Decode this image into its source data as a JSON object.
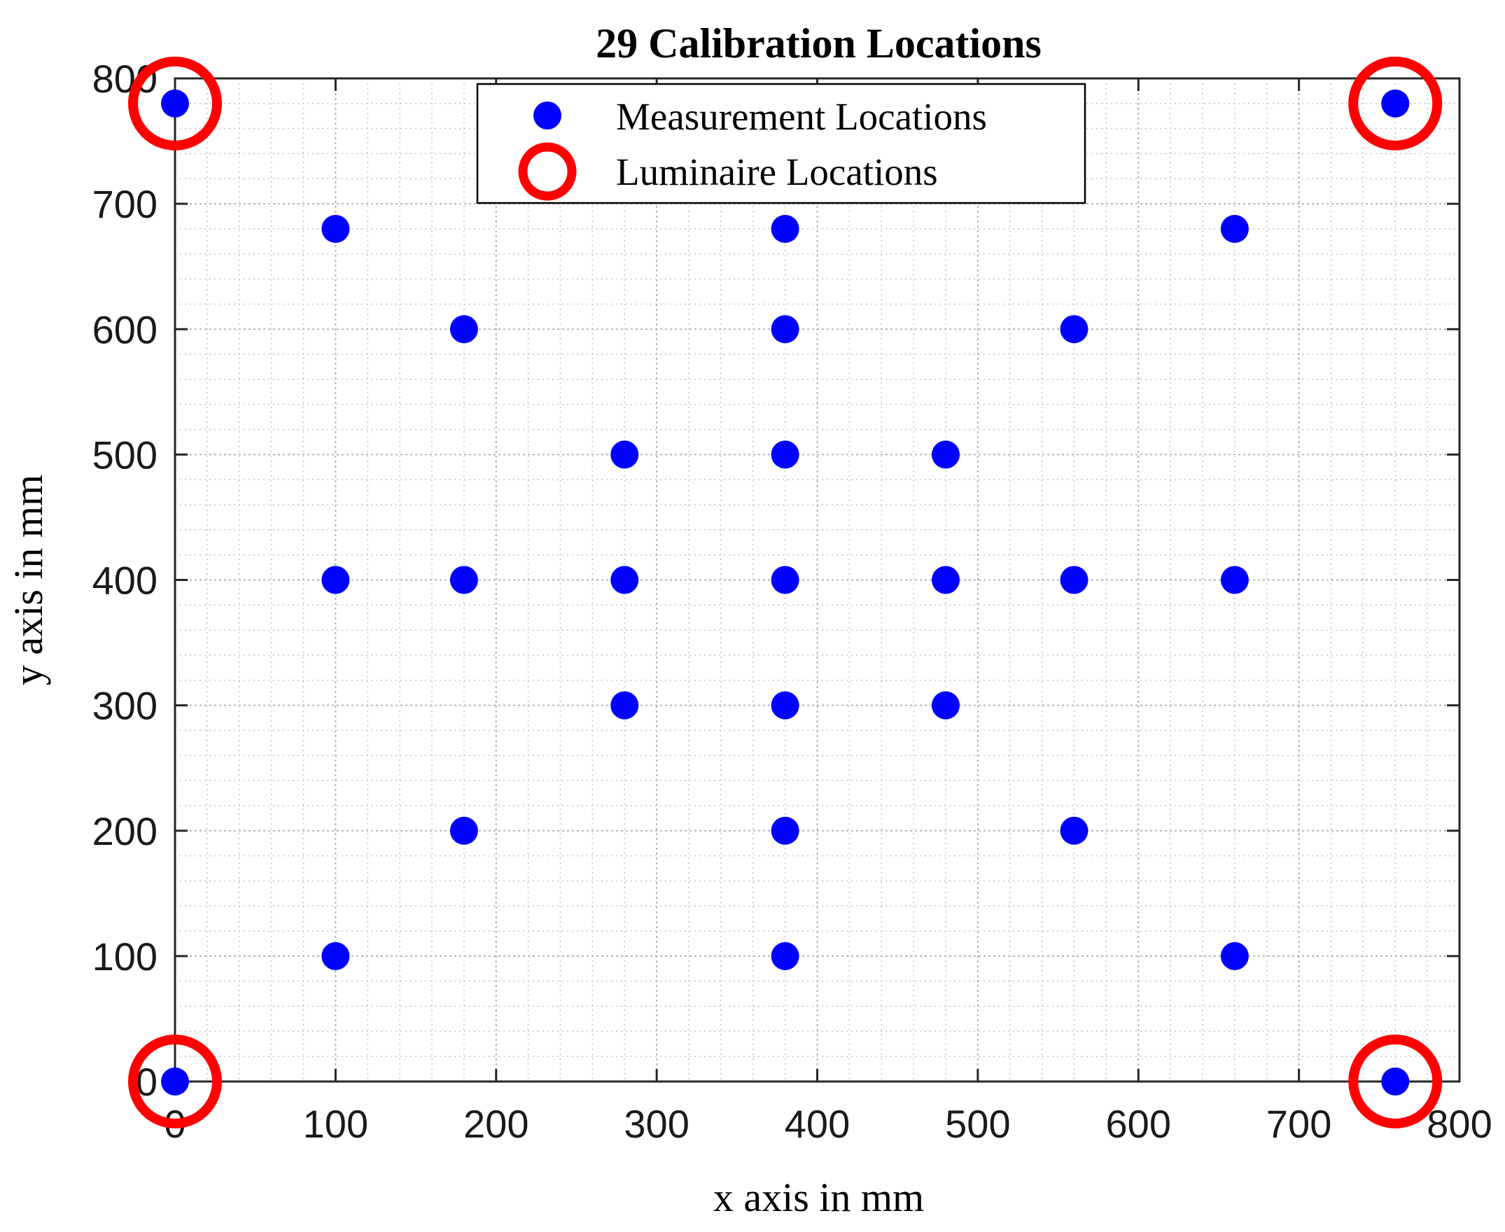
{
  "chart_data": {
    "type": "scatter",
    "title": "29 Calibration Locations",
    "xlabel": "x axis in mm",
    "ylabel": "y axis in mm",
    "xlim": [
      0,
      800
    ],
    "ylim": [
      0,
      800
    ],
    "xticks": [
      0,
      100,
      200,
      300,
      400,
      500,
      600,
      700,
      800
    ],
    "yticks": [
      0,
      100,
      200,
      300,
      400,
      500,
      600,
      700,
      800
    ],
    "grid": "on",
    "minor_grid": "on",
    "legend_position": "top-center",
    "series": [
      {
        "name": "Measurement Locations",
        "marker": "filled-circle",
        "color": "#0000ff",
        "points": [
          {
            "x": 0,
            "y": 780
          },
          {
            "x": 760,
            "y": 780
          },
          {
            "x": 100,
            "y": 680
          },
          {
            "x": 380,
            "y": 680
          },
          {
            "x": 660,
            "y": 680
          },
          {
            "x": 180,
            "y": 600
          },
          {
            "x": 380,
            "y": 600
          },
          {
            "x": 560,
            "y": 600
          },
          {
            "x": 280,
            "y": 500
          },
          {
            "x": 380,
            "y": 500
          },
          {
            "x": 480,
            "y": 500
          },
          {
            "x": 100,
            "y": 400
          },
          {
            "x": 180,
            "y": 400
          },
          {
            "x": 280,
            "y": 400
          },
          {
            "x": 380,
            "y": 400
          },
          {
            "x": 480,
            "y": 400
          },
          {
            "x": 560,
            "y": 400
          },
          {
            "x": 660,
            "y": 400
          },
          {
            "x": 280,
            "y": 300
          },
          {
            "x": 380,
            "y": 300
          },
          {
            "x": 480,
            "y": 300
          },
          {
            "x": 180,
            "y": 200
          },
          {
            "x": 380,
            "y": 200
          },
          {
            "x": 560,
            "y": 200
          },
          {
            "x": 100,
            "y": 100
          },
          {
            "x": 380,
            "y": 100
          },
          {
            "x": 660,
            "y": 100
          },
          {
            "x": 0,
            "y": 0
          },
          {
            "x": 760,
            "y": 0
          }
        ]
      },
      {
        "name": "Luminaire Locations",
        "marker": "open-circle",
        "color": "#ff0000",
        "points": [
          {
            "x": 0,
            "y": 780
          },
          {
            "x": 760,
            "y": 780
          },
          {
            "x": 0,
            "y": 0
          },
          {
            "x": 760,
            "y": 0
          }
        ]
      }
    ]
  }
}
